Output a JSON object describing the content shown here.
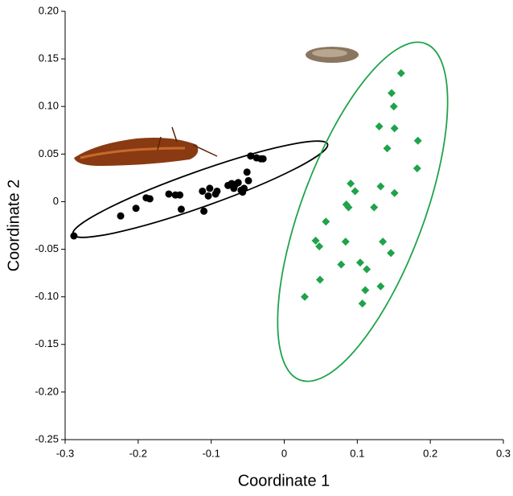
{
  "chart_data": {
    "type": "scatter",
    "xlabel": "Coordinate 1",
    "ylabel": "Coordinate 2",
    "xlim": [
      -0.3,
      0.3
    ],
    "xticks": [
      -0.3,
      -0.2,
      -0.1,
      0,
      0.1,
      0.2,
      0.3
    ],
    "ylim": [
      -0.25,
      0.2
    ],
    "yticks": [
      {
        "value": -0.25,
        "label": "-0.25"
      },
      {
        "value": -0.2,
        "label": "-0.20"
      },
      {
        "value": -0.15,
        "label": "-0.15"
      },
      {
        "value": -0.1,
        "label": "-0.10"
      },
      {
        "value": -0.05,
        "label": "-0.05"
      },
      0,
      0.05,
      {
        "value": 0.1,
        "label": "0.10"
      },
      0.15,
      {
        "value": 0.2,
        "label": "0.20"
      }
    ],
    "grid": false,
    "series": [
      {
        "color": "#000000",
        "marker": "circle",
        "x": [
          -0.288,
          -0.224,
          -0.203,
          -0.189,
          -0.184,
          -0.158,
          -0.149,
          -0.143,
          -0.141,
          -0.112,
          -0.11,
          -0.104,
          -0.102,
          -0.094,
          -0.092,
          -0.077,
          -0.072,
          -0.069,
          -0.067,
          -0.063,
          -0.059,
          -0.057,
          -0.055,
          -0.051,
          -0.049,
          -0.046,
          -0.038,
          -0.032,
          -0.029
        ],
        "values": [
          -0.036,
          -0.015,
          -0.007,
          0.004,
          0.003,
          0.008,
          0.007,
          0.007,
          -0.008,
          0.011,
          -0.01,
          0.006,
          0.014,
          0.008,
          0.011,
          0.017,
          0.019,
          0.014,
          0.018,
          0.02,
          0.012,
          0.01,
          0.014,
          0.031,
          0.022,
          0.048,
          0.046,
          0.045,
          0.045
        ]
      },
      {
        "color": "#1fa34a",
        "marker": "diamond",
        "x": [
          0.16,
          0.147,
          0.15,
          0.13,
          0.151,
          0.183,
          0.141,
          0.182,
          0.091,
          0.097,
          0.132,
          0.151,
          0.085,
          0.088,
          0.123,
          0.057,
          0.043,
          0.048,
          0.084,
          0.135,
          0.146,
          0.104,
          0.078,
          0.113,
          0.049,
          0.132,
          0.111,
          0.028,
          0.107
        ],
        "values": [
          0.135,
          0.114,
          0.1,
          0.079,
          0.077,
          0.064,
          0.056,
          0.035,
          0.019,
          0.011,
          0.016,
          0.009,
          -0.003,
          -0.006,
          -0.006,
          -0.021,
          -0.041,
          -0.047,
          -0.042,
          -0.042,
          -0.054,
          -0.064,
          -0.066,
          -0.071,
          -0.082,
          -0.089,
          -0.093,
          -0.1,
          -0.107
        ]
      }
    ]
  }
}
